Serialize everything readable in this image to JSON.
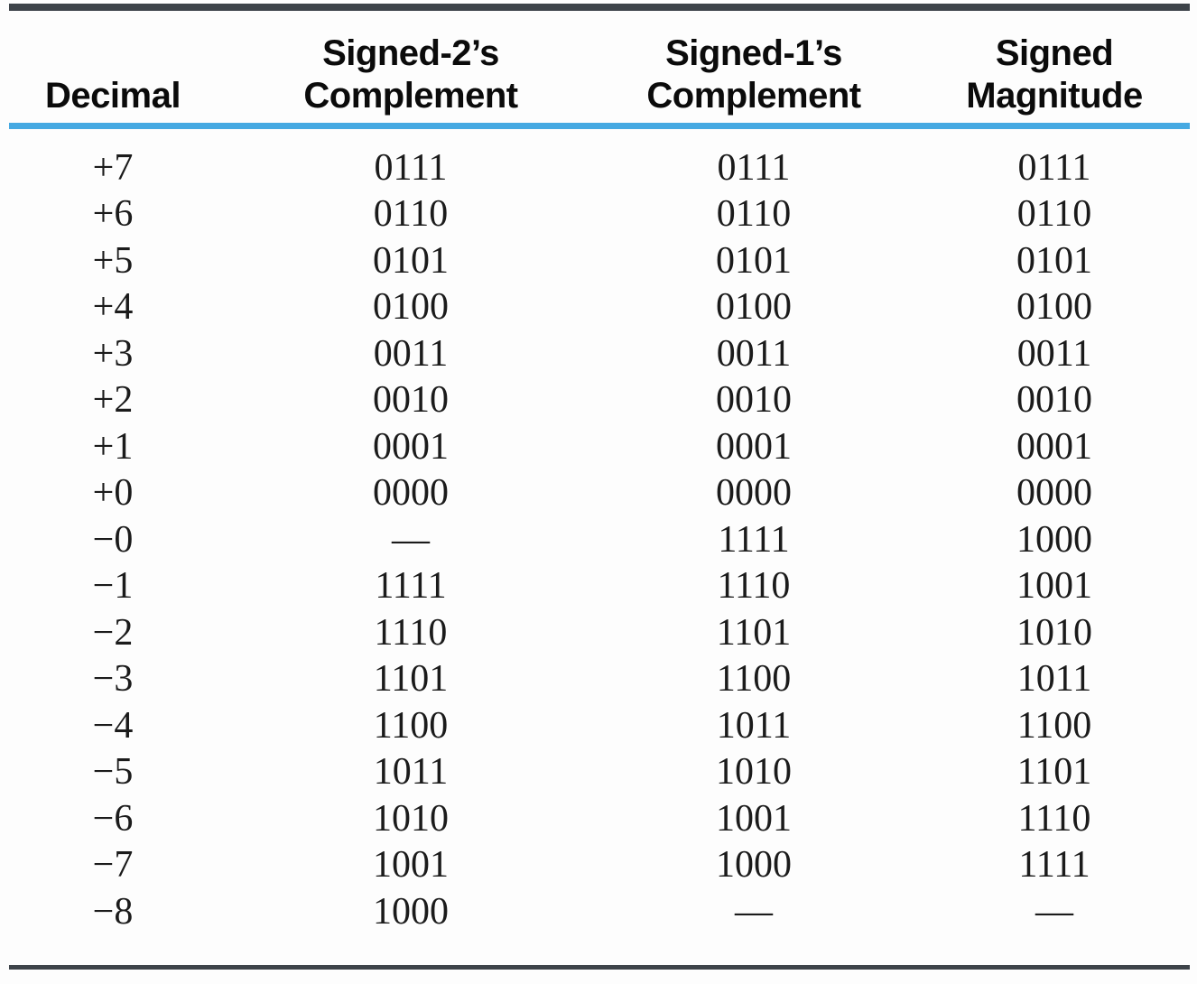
{
  "colors": {
    "background": "#fdfdfd",
    "rule_dark": "#3d4349",
    "rule_blue": "#45a9e2",
    "header_text": "#0b0b0b",
    "body_text": "#1b1b1b"
  },
  "table": {
    "headers": [
      {
        "lines": [
          "Decimal"
        ]
      },
      {
        "lines": [
          "Signed-2’s",
          "Complement"
        ]
      },
      {
        "lines": [
          "Signed-1’s",
          "Complement"
        ]
      },
      {
        "lines": [
          "Signed",
          "Magnitude"
        ]
      }
    ],
    "missing_marker": "—",
    "rows": [
      {
        "decimal": "+7",
        "twos_complement": "0111",
        "ones_complement": "0111",
        "signed_magnitude": "0111"
      },
      {
        "decimal": "+6",
        "twos_complement": "0110",
        "ones_complement": "0110",
        "signed_magnitude": "0110"
      },
      {
        "decimal": "+5",
        "twos_complement": "0101",
        "ones_complement": "0101",
        "signed_magnitude": "0101"
      },
      {
        "decimal": "+4",
        "twos_complement": "0100",
        "ones_complement": "0100",
        "signed_magnitude": "0100"
      },
      {
        "decimal": "+3",
        "twos_complement": "0011",
        "ones_complement": "0011",
        "signed_magnitude": "0011"
      },
      {
        "decimal": "+2",
        "twos_complement": "0010",
        "ones_complement": "0010",
        "signed_magnitude": "0010"
      },
      {
        "decimal": "+1",
        "twos_complement": "0001",
        "ones_complement": "0001",
        "signed_magnitude": "0001"
      },
      {
        "decimal": "+0",
        "twos_complement": "0000",
        "ones_complement": "0000",
        "signed_magnitude": "0000"
      },
      {
        "decimal": "−0",
        "twos_complement": "—",
        "ones_complement": "1111",
        "signed_magnitude": "1000"
      },
      {
        "decimal": "−1",
        "twos_complement": "1111",
        "ones_complement": "1110",
        "signed_magnitude": "1001"
      },
      {
        "decimal": "−2",
        "twos_complement": "1110",
        "ones_complement": "1101",
        "signed_magnitude": "1010"
      },
      {
        "decimal": "−3",
        "twos_complement": "1101",
        "ones_complement": "1100",
        "signed_magnitude": "1011"
      },
      {
        "decimal": "−4",
        "twos_complement": "1100",
        "ones_complement": "1011",
        "signed_magnitude": "1100"
      },
      {
        "decimal": "−5",
        "twos_complement": "1011",
        "ones_complement": "1010",
        "signed_magnitude": "1101"
      },
      {
        "decimal": "−6",
        "twos_complement": "1010",
        "ones_complement": "1001",
        "signed_magnitude": "1110"
      },
      {
        "decimal": "−7",
        "twos_complement": "1001",
        "ones_complement": "1000",
        "signed_magnitude": "1111"
      },
      {
        "decimal": "−8",
        "twos_complement": "1000",
        "ones_complement": "—",
        "signed_magnitude": "—"
      }
    ]
  }
}
